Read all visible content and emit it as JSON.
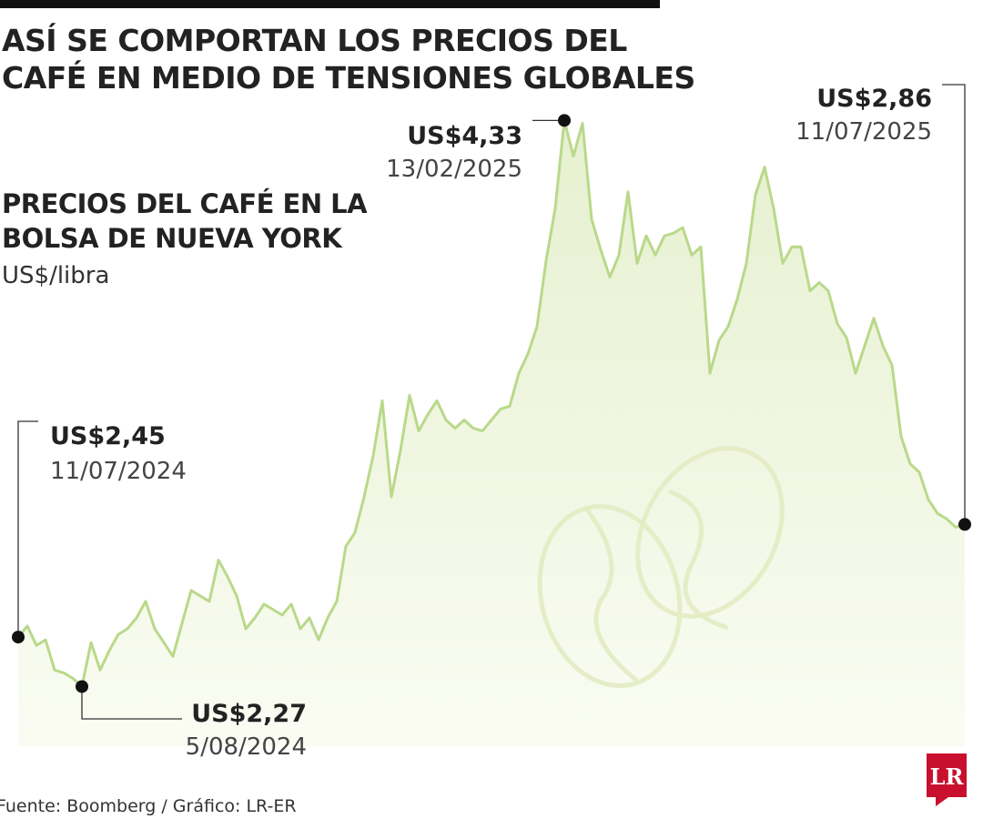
{
  "chart_data": {
    "type": "line",
    "title": [
      "ASÍ SE COMPORTAN LOS PRECIOS DEL",
      "CAFÉ EN MEDIO DE TENSIONES GLOBALES"
    ],
    "subtitle": [
      "PRECIOS DEL CAFÉ EN LA",
      "BOLSA DE NUEVA YORK"
    ],
    "unit": "US$/libra",
    "color": "#b9d98a",
    "ylim": [
      2.0,
      4.5
    ],
    "values": [
      2.45,
      2.49,
      2.42,
      2.44,
      2.33,
      2.32,
      2.3,
      2.27,
      2.43,
      2.33,
      2.4,
      2.46,
      2.48,
      2.52,
      2.58,
      2.48,
      2.43,
      2.38,
      2.5,
      2.62,
      2.6,
      2.58,
      2.73,
      2.67,
      2.6,
      2.48,
      2.52,
      2.57,
      2.55,
      2.53,
      2.57,
      2.48,
      2.52,
      2.44,
      2.52,
      2.58,
      2.78,
      2.83,
      2.96,
      3.11,
      3.31,
      2.96,
      3.13,
      3.33,
      3.2,
      3.26,
      3.31,
      3.24,
      3.21,
      3.24,
      3.21,
      3.2,
      3.24,
      3.28,
      3.29,
      3.41,
      3.48,
      3.58,
      3.82,
      4.01,
      4.33,
      4.2,
      4.32,
      3.97,
      3.86,
      3.76,
      3.84,
      4.07,
      3.81,
      3.91,
      3.84,
      3.91,
      3.92,
      3.94,
      3.84,
      3.87,
      3.41,
      3.53,
      3.58,
      3.68,
      3.81,
      4.06,
      4.16,
      4.01,
      3.81,
      3.87,
      3.87,
      3.71,
      3.74,
      3.71,
      3.59,
      3.54,
      3.41,
      3.51,
      3.61,
      3.51,
      3.44,
      3.18,
      3.08,
      3.05,
      2.95,
      2.9,
      2.88,
      2.85,
      2.86
    ],
    "annotations": [
      {
        "value": 2.45,
        "label": "US$2,45",
        "date": "11/07/2024"
      },
      {
        "value": 2.27,
        "label": "US$2,27",
        "date": "5/08/2024"
      },
      {
        "value": 4.33,
        "label": "US$4,33",
        "date": "13/02/2025"
      },
      {
        "value": 2.86,
        "label": "US$2,86",
        "date": "11/07/2025"
      }
    ],
    "source": "Fuente: Boomberg / Gráfico: LR-ER",
    "logo": "LR"
  }
}
